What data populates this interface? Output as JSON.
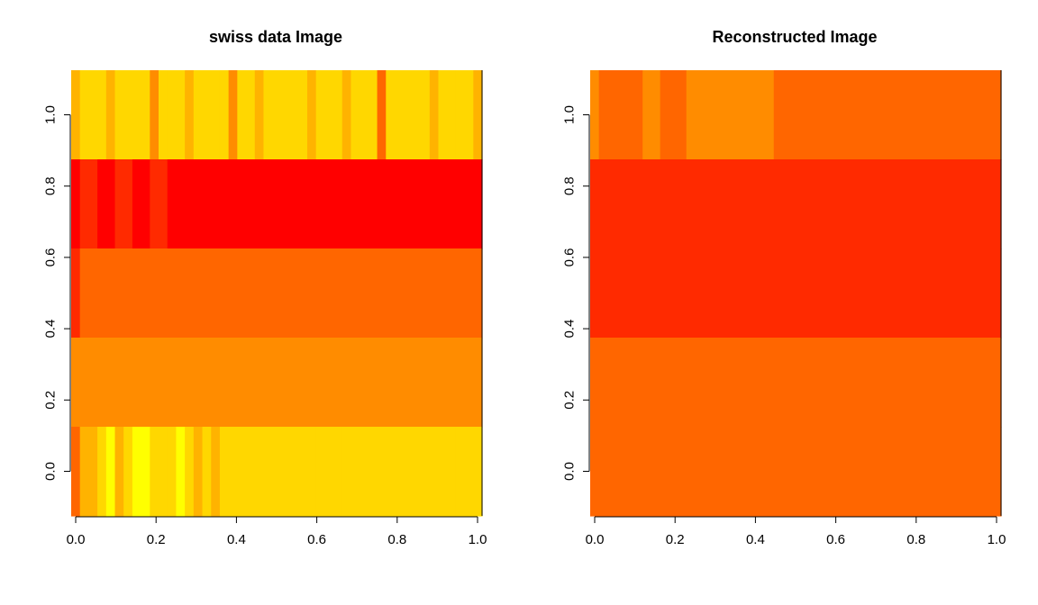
{
  "palette": {
    "levels": [
      "#FF0000",
      "#FF2A00",
      "#FF4000",
      "#FF6600",
      "#FF8C00",
      "#FFB300",
      "#FFD700",
      "#FFFF00",
      "#FFFF80",
      "#FFFFD0"
    ]
  },
  "chart_data": [
    {
      "type": "heatmap",
      "title": "swiss data Image",
      "xlim": [
        0,
        1
      ],
      "ylim": [
        -0.125,
        1.125
      ],
      "x_ticks": [
        0.0,
        0.2,
        0.4,
        0.6,
        0.8,
        1.0
      ],
      "x_tick_labels": [
        "0.0",
        "0.2",
        "0.4",
        "0.6",
        "0.8",
        "1.0"
      ],
      "y_ticks": [
        0.0,
        0.2,
        0.4,
        0.6,
        0.8,
        1.0
      ],
      "y_tick_labels": [
        "0.0",
        "0.2",
        "0.4",
        "0.6",
        "0.8",
        "1.0"
      ],
      "n_cols": 47,
      "n_rows": 5,
      "rows": [
        [
          5,
          6,
          6,
          6,
          5,
          6,
          6,
          6,
          6,
          4,
          6,
          6,
          6,
          5,
          6,
          6,
          6,
          6,
          4,
          6,
          6,
          5,
          6,
          6,
          6,
          6,
          6,
          5,
          6,
          6,
          6,
          5,
          6,
          6,
          6,
          3,
          6,
          6,
          6,
          6,
          6,
          5,
          6,
          6,
          6,
          6,
          5
        ],
        [
          0,
          1,
          1,
          0,
          0,
          1,
          1,
          0,
          0,
          1,
          1,
          0,
          0,
          0,
          0,
          0,
          0,
          0,
          0,
          0,
          0,
          0,
          0,
          0,
          0,
          0,
          0,
          0,
          0,
          0,
          0,
          0,
          0,
          0,
          0,
          0,
          0,
          0,
          0,
          0,
          0,
          0,
          0,
          0,
          0,
          0,
          0
        ],
        [
          1,
          3,
          3,
          3,
          3,
          3,
          3,
          3,
          3,
          3,
          3,
          3,
          3,
          3,
          3,
          3,
          3,
          3,
          3,
          3,
          3,
          3,
          3,
          3,
          3,
          3,
          3,
          3,
          3,
          3,
          3,
          3,
          3,
          3,
          3,
          3,
          3,
          3,
          3,
          3,
          3,
          3,
          3,
          3,
          3,
          3,
          3
        ],
        [
          4,
          4,
          4,
          4,
          4,
          4,
          4,
          4,
          4,
          4,
          4,
          4,
          4,
          4,
          4,
          4,
          4,
          4,
          4,
          4,
          4,
          4,
          4,
          4,
          4,
          4,
          4,
          4,
          4,
          4,
          4,
          4,
          4,
          4,
          4,
          4,
          4,
          4,
          4,
          4,
          4,
          4,
          4,
          4,
          4,
          4,
          4
        ],
        [
          3,
          5,
          5,
          6,
          7,
          5,
          6,
          7,
          7,
          6,
          6,
          6,
          7,
          6,
          5,
          6,
          5,
          6,
          6,
          6,
          6,
          6,
          6,
          6,
          6,
          6,
          6,
          6,
          6,
          6,
          6,
          6,
          6,
          6,
          6,
          6,
          6,
          6,
          6,
          6,
          6,
          6,
          6,
          6,
          6,
          6,
          6
        ]
      ]
    },
    {
      "type": "heatmap",
      "title": "Reconstructed Image",
      "xlim": [
        0,
        1
      ],
      "ylim": [
        -0.125,
        1.125
      ],
      "x_ticks": [
        0.0,
        0.2,
        0.4,
        0.6,
        0.8,
        1.0
      ],
      "x_tick_labels": [
        "0.0",
        "0.2",
        "0.4",
        "0.6",
        "0.8",
        "1.0"
      ],
      "y_ticks": [
        0.0,
        0.2,
        0.4,
        0.6,
        0.8,
        1.0
      ],
      "y_tick_labels": [
        "0.0",
        "0.2",
        "0.4",
        "0.6",
        "0.8",
        "1.0"
      ],
      "n_cols": 47,
      "n_rows": 5,
      "rows": [
        [
          4,
          3,
          3,
          3,
          3,
          3,
          4,
          4,
          3,
          3,
          3,
          4,
          4,
          4,
          4,
          4,
          4,
          4,
          4,
          4,
          4,
          3,
          3,
          3,
          3,
          3,
          3,
          3,
          3,
          3,
          3,
          3,
          3,
          3,
          3,
          3,
          3,
          3,
          3,
          3,
          3,
          3,
          3,
          3,
          3,
          3,
          3
        ],
        [
          1,
          1,
          1,
          1,
          1,
          1,
          1,
          1,
          1,
          1,
          1,
          1,
          1,
          1,
          1,
          1,
          1,
          1,
          1,
          1,
          1,
          1,
          1,
          1,
          1,
          1,
          1,
          1,
          1,
          1,
          1,
          1,
          1,
          1,
          1,
          1,
          1,
          1,
          1,
          1,
          1,
          1,
          1,
          1,
          1,
          1,
          1
        ],
        [
          1,
          1,
          1,
          1,
          1,
          1,
          1,
          1,
          1,
          1,
          1,
          1,
          1,
          1,
          1,
          1,
          1,
          1,
          1,
          1,
          1,
          1,
          1,
          1,
          1,
          1,
          1,
          1,
          1,
          1,
          1,
          1,
          1,
          1,
          1,
          1,
          1,
          1,
          1,
          1,
          1,
          1,
          1,
          1,
          1,
          1,
          1
        ],
        [
          3,
          3,
          3,
          3,
          3,
          3,
          3,
          3,
          3,
          3,
          3,
          3,
          3,
          3,
          3,
          3,
          3,
          3,
          3,
          3,
          3,
          3,
          3,
          3,
          3,
          3,
          3,
          3,
          3,
          3,
          3,
          3,
          3,
          3,
          3,
          3,
          3,
          3,
          3,
          3,
          3,
          3,
          3,
          3,
          3,
          3,
          3
        ],
        [
          3,
          3,
          3,
          3,
          3,
          3,
          3,
          3,
          3,
          3,
          3,
          3,
          3,
          3,
          3,
          3,
          3,
          3,
          3,
          3,
          3,
          3,
          3,
          3,
          3,
          3,
          3,
          3,
          3,
          3,
          3,
          3,
          3,
          3,
          3,
          3,
          3,
          3,
          3,
          3,
          3,
          3,
          3,
          3,
          3,
          3,
          3
        ]
      ]
    }
  ]
}
